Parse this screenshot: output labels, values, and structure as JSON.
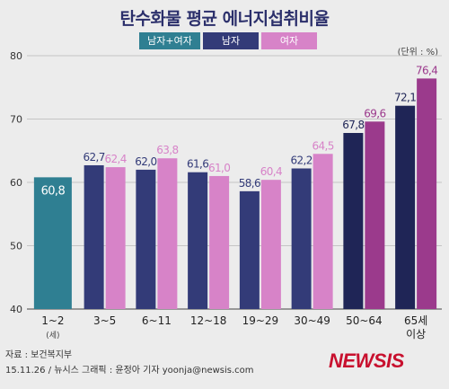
{
  "title": "탄수화물 평균 에너지섭취비율",
  "legend": [
    {
      "label": "남자+여자",
      "color": "#2f7f92"
    },
    {
      "label": "남자",
      "color": "#333b78"
    },
    {
      "label": "여자",
      "color": "#d783c8"
    }
  ],
  "unit": "(단위 : %)",
  "source": "자료 : 보건복지부",
  "credit": "15.11.26 / 뉴시스 그래픽 : 윤정아 기자  yoonja@newsis.com",
  "logo": "NEWSIS",
  "chart_data": {
    "type": "bar",
    "title": "탄수화물 평균 에너지섭취비율",
    "unit": "(단위 : %)",
    "ylim": [
      40,
      80
    ],
    "yticks": [
      40,
      50,
      60,
      70,
      80
    ],
    "grid": true,
    "categories": [
      "1~2",
      "3~5",
      "6~11",
      "12~18",
      "19~29",
      "30~49",
      "50~64",
      "65세 이상"
    ],
    "category_sublabels": [
      "(세)",
      "",
      "",
      "",
      "",
      "",
      "",
      ""
    ],
    "series": [
      {
        "name": "남자+여자",
        "values": [
          60.8,
          null,
          null,
          null,
          null,
          null,
          null,
          null
        ],
        "labels": [
          "60,8",
          null,
          null,
          null,
          null,
          null,
          null,
          null
        ]
      },
      {
        "name": "남자",
        "values": [
          null,
          62.7,
          62.0,
          61.6,
          58.6,
          62.2,
          67.8,
          72.1
        ],
        "labels": [
          null,
          "62,7",
          "62,0",
          "61,6",
          "58,6",
          "62,2",
          "67,8",
          "72,1"
        ]
      },
      {
        "name": "여자",
        "values": [
          null,
          62.4,
          63.8,
          61.0,
          60.4,
          64.5,
          69.6,
          76.4
        ],
        "labels": [
          null,
          "62,4",
          "63,8",
          "61,0",
          "60,4",
          "64,5",
          "69,6",
          "76,4"
        ]
      }
    ],
    "colors": {
      "both": "#2f7f92",
      "male": "#333b78",
      "female": "#d783c8",
      "male_dark": "#1f2556",
      "female_dark": "#9b3a8c"
    }
  }
}
